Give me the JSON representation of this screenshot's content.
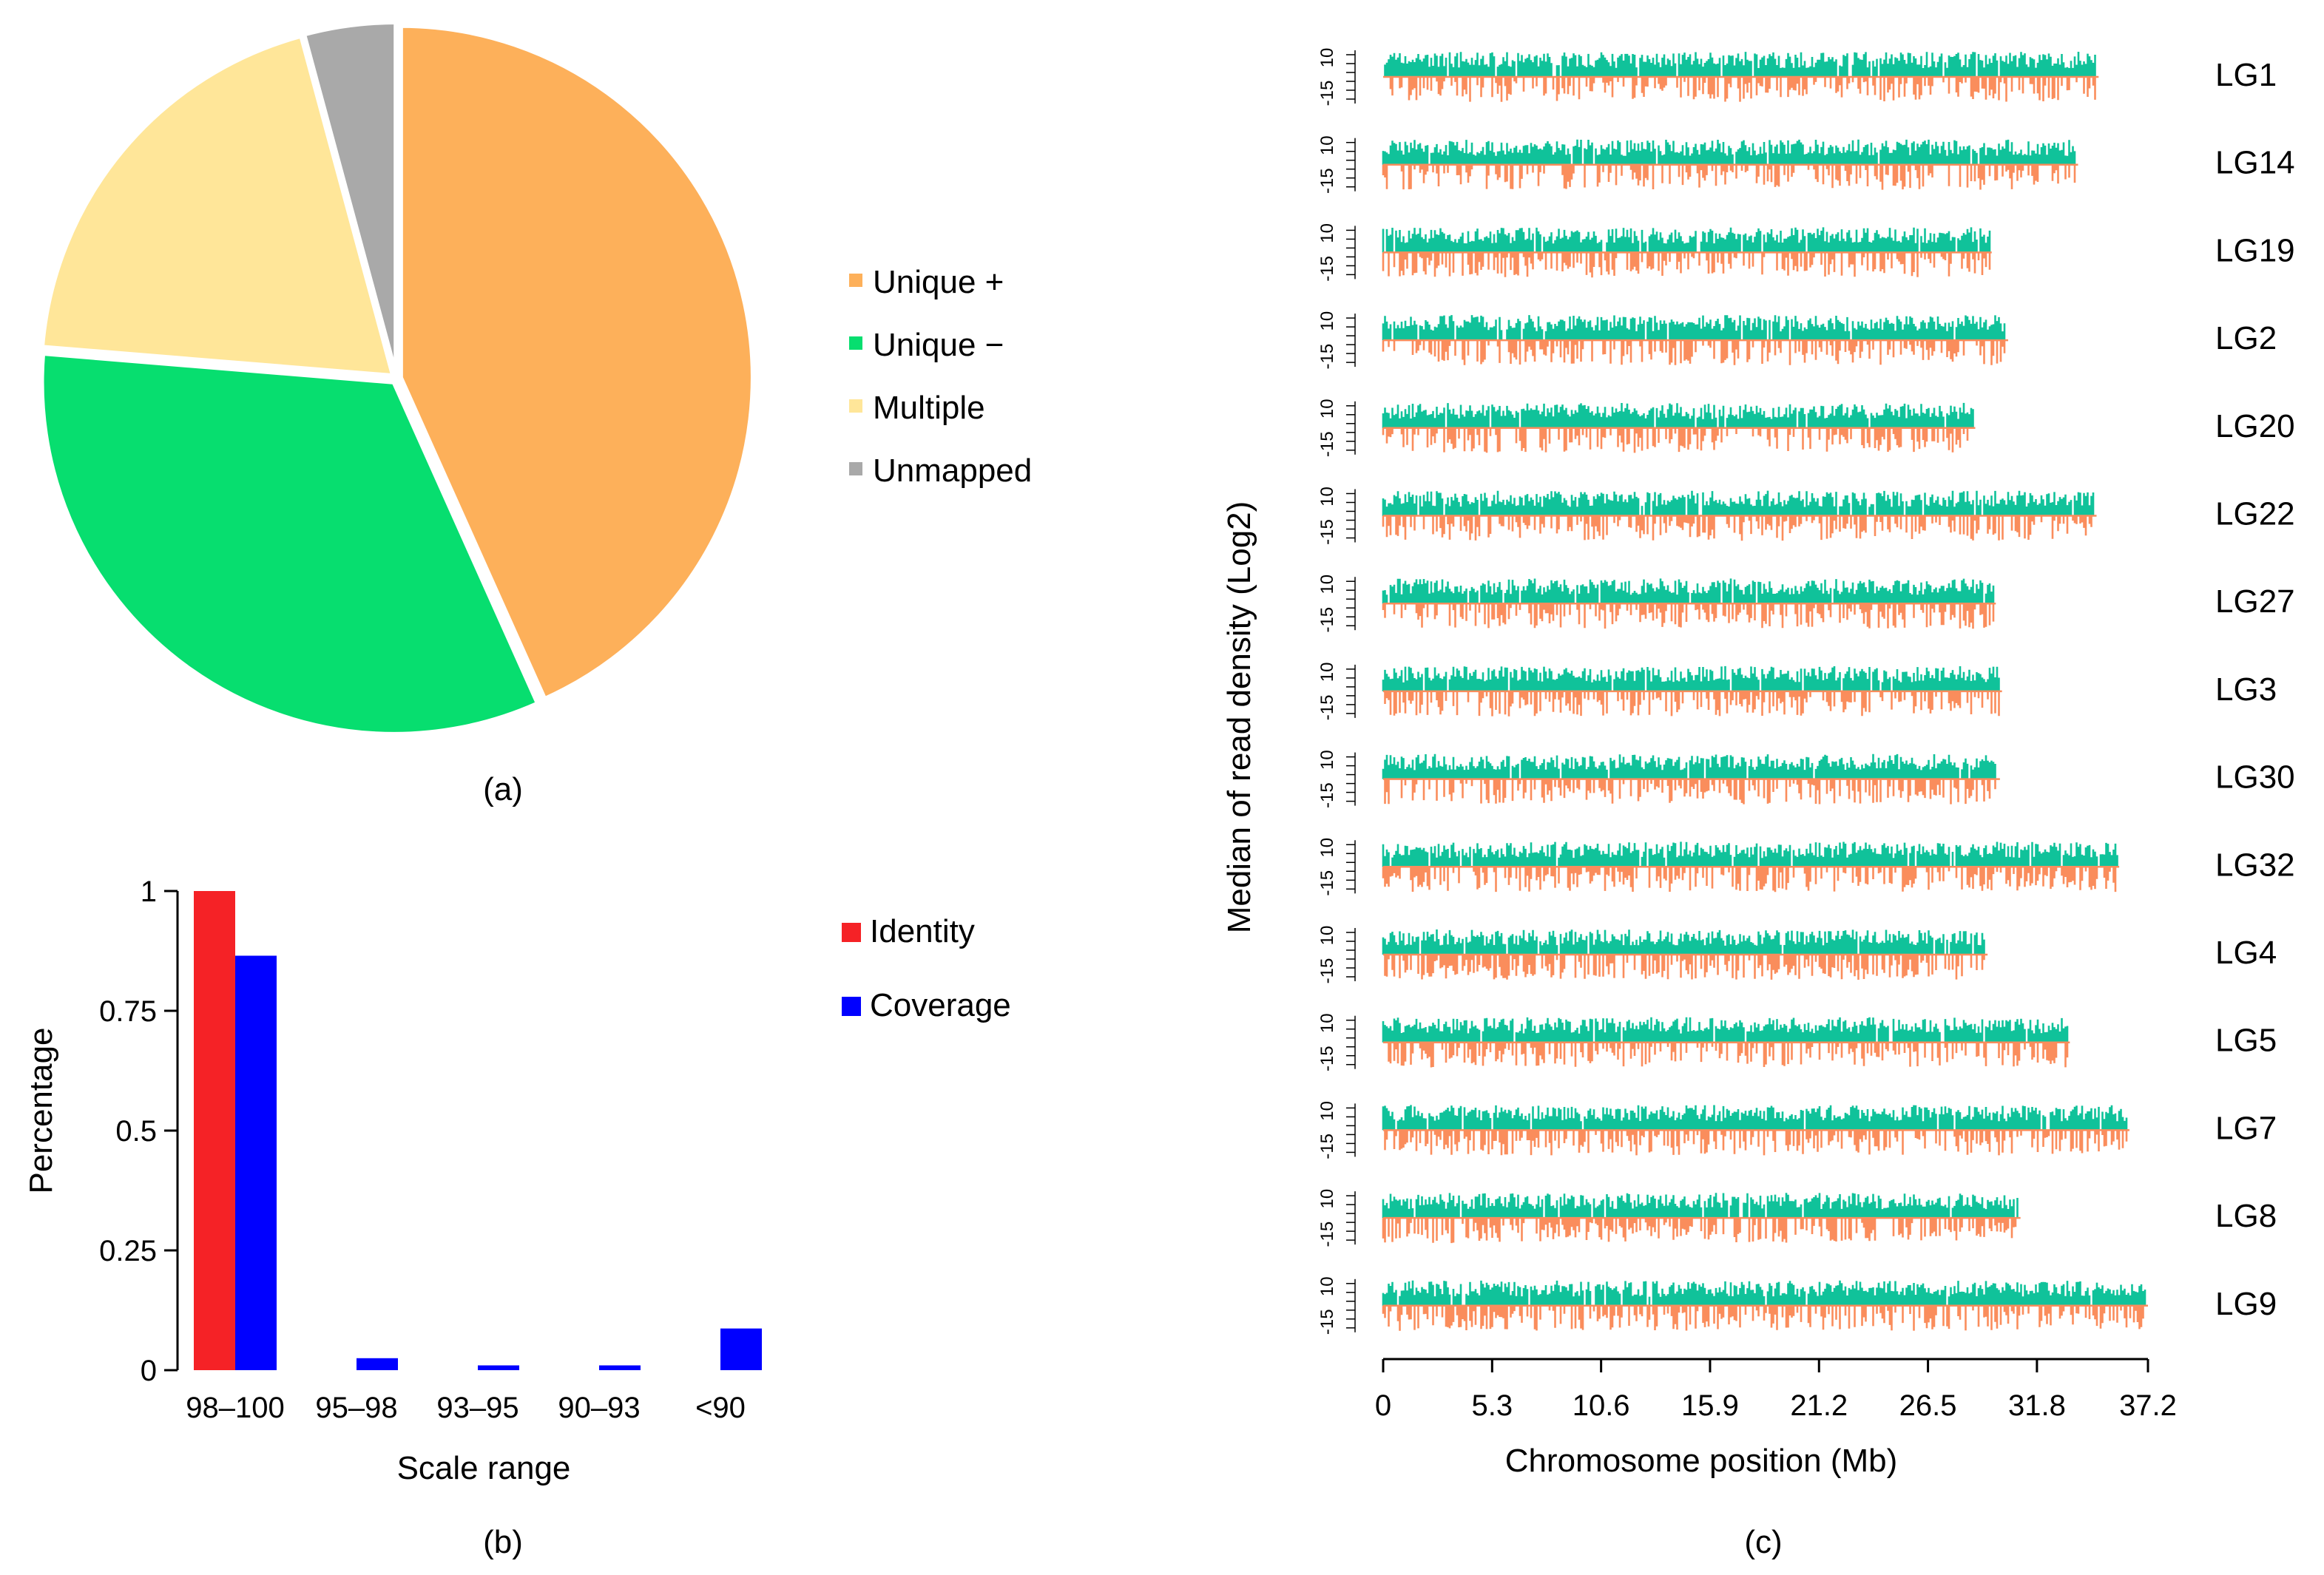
{
  "colors": {
    "unique_plus": "#FDB05A",
    "unique_minus": "#07DE6F",
    "multiple": "#FFE699",
    "unmapped": "#A9A9A9",
    "identity": "#F52226",
    "coverage": "#0000FF",
    "density_plus": "#10C29A",
    "density_minus": "#FA8D5C"
  },
  "chart_data": [
    {
      "type": "pie",
      "panel_label": "(a)",
      "slices": [
        {
          "name": "Unique +",
          "value": 43.3,
          "color_key": "unique_plus"
        },
        {
          "name": "Unique −",
          "value": 33.0,
          "color_key": "unique_minus"
        },
        {
          "name": "Multiple",
          "value": 19.5,
          "color_key": "multiple"
        },
        {
          "name": "Unmapped",
          "value": 4.2,
          "color_key": "unmapped"
        }
      ],
      "legend": [
        "Unique +",
        "Unique −",
        "Multiple",
        "Unmapped"
      ],
      "legend_position": "right"
    },
    {
      "type": "bar",
      "panel_label": "(b)",
      "xlabel": "Scale range",
      "ylabel": "Percentage",
      "categories": [
        "98–100",
        "95–98",
        "93–95",
        "90–93",
        "<90"
      ],
      "ylim": [
        0,
        1
      ],
      "yticks": [
        "0",
        "0.25",
        "0.5",
        "0.75",
        "1"
      ],
      "series": [
        {
          "name": "Identity",
          "color_key": "identity",
          "values": [
            1.0,
            0,
            0,
            0,
            0
          ]
        },
        {
          "name": "Coverage",
          "color_key": "coverage",
          "values": [
            0.865,
            0.025,
            0.01,
            0.01,
            0.087
          ]
        }
      ],
      "legend_position": "right"
    },
    {
      "type": "bar",
      "panel_label": "(c)",
      "xlabel": "Chromosome position (Mb)",
      "ylabel": "Median of read density (Log2)",
      "xlim": [
        0,
        37.2
      ],
      "xticks": [
        "0",
        "5.3",
        "10.6",
        "15.9",
        "21.2",
        "26.5",
        "31.8",
        "37.2"
      ],
      "track_yticks": [
        "10",
        "-15"
      ],
      "tracks": [
        {
          "name": "LG1",
          "length": 34.8
        },
        {
          "name": "LG14",
          "length": 33.8
        },
        {
          "name": "LG19",
          "length": 29.6
        },
        {
          "name": "LG2",
          "length": 30.4
        },
        {
          "name": "LG20",
          "length": 28.8
        },
        {
          "name": "LG22",
          "length": 34.7
        },
        {
          "name": "LG27",
          "length": 29.8
        },
        {
          "name": "LG3",
          "length": 30.1
        },
        {
          "name": "LG30",
          "length": 30.0
        },
        {
          "name": "LG32",
          "length": 35.8
        },
        {
          "name": "LG4",
          "length": 29.4
        },
        {
          "name": "LG5",
          "length": 33.4
        },
        {
          "name": "LG7",
          "length": 36.3
        },
        {
          "name": "LG8",
          "length": 31.0
        },
        {
          "name": "LG9",
          "length": 37.2
        }
      ]
    }
  ]
}
